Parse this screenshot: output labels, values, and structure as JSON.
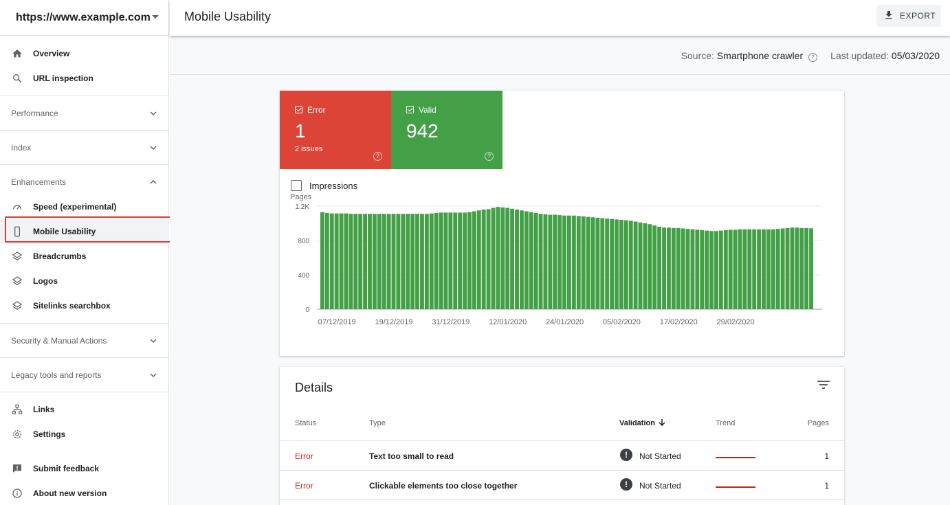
{
  "property": {
    "url": "https://www.example.com"
  },
  "sidebar": {
    "top_items": [
      {
        "label": "Overview",
        "icon": "home-icon"
      },
      {
        "label": "URL inspection",
        "icon": "search-icon"
      }
    ],
    "sections": {
      "performance": "Performance",
      "index": "Index",
      "enhancements": "Enhancements",
      "security": "Security & Manual Actions",
      "legacy": "Legacy tools and reports"
    },
    "enhancement_items": [
      {
        "label": "Speed (experimental)",
        "icon": "speedometer-icon"
      },
      {
        "label": "Mobile Usability",
        "icon": "smartphone-icon",
        "active": true
      },
      {
        "label": "Breadcrumbs",
        "icon": "layers-icon"
      },
      {
        "label": "Logos",
        "icon": "layers-icon"
      },
      {
        "label": "Sitelinks searchbox",
        "icon": "layers-icon"
      }
    ],
    "bottom_items": [
      {
        "label": "Links",
        "icon": "links-icon"
      },
      {
        "label": "Settings",
        "icon": "gear-icon"
      }
    ],
    "footer_items": [
      {
        "label": "Submit feedback",
        "icon": "feedback-icon"
      },
      {
        "label": "About new version",
        "icon": "info-icon"
      }
    ]
  },
  "header": {
    "title": "Mobile Usability",
    "export_label": "EXPORT"
  },
  "source_bar": {
    "source_prefix": "Source:",
    "source_value": "Smartphone crawler",
    "updated_prefix": "Last updated:",
    "updated_value": "05/03/2020"
  },
  "summary": {
    "error": {
      "label": "Error",
      "value": "1",
      "sub": "2 issues",
      "color": "#db4437"
    },
    "valid": {
      "label": "Valid",
      "value": "942",
      "color": "#43a047"
    },
    "impressions_label": "Impressions"
  },
  "chart_data": {
    "type": "bar",
    "ylabel": "Pages",
    "ylim": [
      0,
      1200
    ],
    "yticks": [
      "0",
      "400",
      "800",
      "1.2K"
    ],
    "xticks": [
      "07/12/2019",
      "19/12/2019",
      "31/12/2019",
      "12/01/2020",
      "24/01/2020",
      "05/02/2020",
      "17/02/2020",
      "29/02/2020"
    ],
    "start_date": "04/12/2019",
    "bar_color": "#43a047",
    "values": [
      1130,
      1120,
      1115,
      1115,
      1115,
      1115,
      1110,
      1110,
      1110,
      1110,
      1110,
      1110,
      1110,
      1110,
      1110,
      1110,
      1110,
      1110,
      1110,
      1110,
      1110,
      1110,
      1110,
      1115,
      1120,
      1125,
      1125,
      1125,
      1125,
      1125,
      1125,
      1130,
      1140,
      1150,
      1160,
      1165,
      1180,
      1190,
      1185,
      1180,
      1170,
      1160,
      1150,
      1140,
      1130,
      1120,
      1110,
      1105,
      1100,
      1100,
      1095,
      1090,
      1090,
      1090,
      1085,
      1080,
      1075,
      1070,
      1065,
      1060,
      1055,
      1050,
      1045,
      1040,
      1035,
      1030,
      1020,
      1010,
      1000,
      990,
      975,
      960,
      950,
      950,
      945,
      945,
      940,
      935,
      930,
      925,
      920,
      915,
      910,
      910,
      915,
      920,
      925,
      925,
      930,
      930,
      930,
      930,
      930,
      930,
      930,
      930,
      935,
      940,
      945,
      950,
      950,
      945,
      945,
      942
    ]
  },
  "details": {
    "title": "Details",
    "columns": {
      "status": "Status",
      "type": "Type",
      "validation": "Validation",
      "trend": "Trend",
      "pages": "Pages"
    },
    "rows": [
      {
        "status": "Error",
        "type": "Text too small to read",
        "validation": "Not Started",
        "pages": "1"
      },
      {
        "status": "Error",
        "type": "Clickable elements too close together",
        "validation": "Not Started",
        "pages": "1"
      }
    ]
  }
}
